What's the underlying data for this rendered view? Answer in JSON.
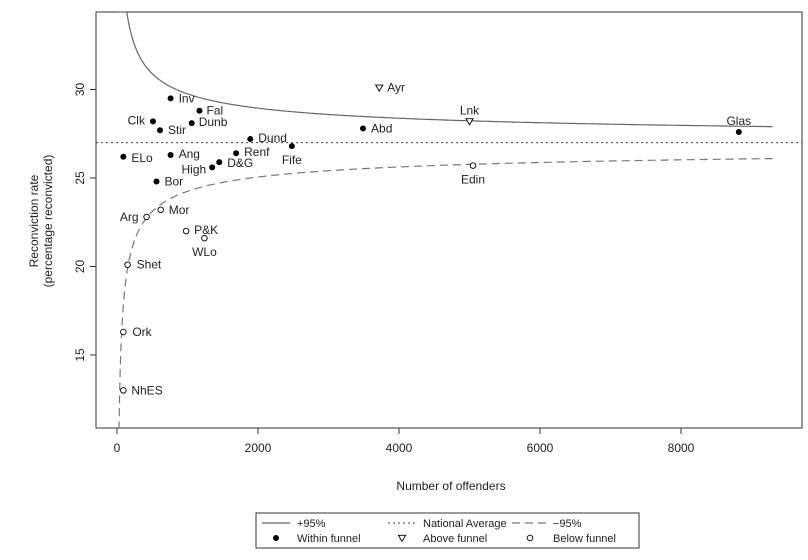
{
  "chart_data": {
    "type": "scatter",
    "title": "",
    "xlabel": "Number of offenders",
    "ylabel": [
      "Reconviction rate",
      "(percentage reconvicted)"
    ],
    "xlim": [
      -300,
      9400
    ],
    "ylim": [
      11.5,
      33.8
    ],
    "x_ticks": [
      0,
      2000,
      4000,
      6000,
      8000
    ],
    "y_ticks": [
      15,
      20,
      25,
      30
    ],
    "national_average": 27.0,
    "points": [
      {
        "label": "Inv",
        "x": 760,
        "y": 29.5,
        "group": "within"
      },
      {
        "label": "Fal",
        "x": 1170,
        "y": 28.8,
        "group": "within"
      },
      {
        "label": "Clk",
        "x": 510,
        "y": 28.2,
        "group": "within"
      },
      {
        "label": "Dunb",
        "x": 1060,
        "y": 28.1,
        "group": "within"
      },
      {
        "label": "Stir",
        "x": 610,
        "y": 27.7,
        "group": "within"
      },
      {
        "label": "Abd",
        "x": 3490,
        "y": 27.8,
        "group": "within"
      },
      {
        "label": "Dund",
        "x": 1890,
        "y": 27.2,
        "group": "within"
      },
      {
        "label": "Fife",
        "x": 2480,
        "y": 26.8,
        "group": "within"
      },
      {
        "label": "Renf",
        "x": 1690,
        "y": 26.4,
        "group": "within"
      },
      {
        "label": "Ang",
        "x": 760,
        "y": 26.3,
        "group": "within"
      },
      {
        "label": "ELo",
        "x": 90,
        "y": 26.2,
        "group": "within"
      },
      {
        "label": "D&G",
        "x": 1450,
        "y": 25.9,
        "group": "within"
      },
      {
        "label": "High",
        "x": 1350,
        "y": 25.6,
        "group": "within"
      },
      {
        "label": "Bor",
        "x": 560,
        "y": 24.8,
        "group": "within"
      },
      {
        "label": "Glas",
        "x": 8820,
        "y": 27.6,
        "group": "within"
      },
      {
        "label": "Ayr",
        "x": 3720,
        "y": 30.1,
        "group": "above"
      },
      {
        "label": "Lnk",
        "x": 5000,
        "y": 28.2,
        "group": "above"
      },
      {
        "label": "Edin",
        "x": 5050,
        "y": 25.7,
        "group": "below"
      },
      {
        "label": "Mor",
        "x": 620,
        "y": 23.2,
        "group": "below"
      },
      {
        "label": "Arg",
        "x": 420,
        "y": 22.8,
        "group": "below"
      },
      {
        "label": "P&K",
        "x": 980,
        "y": 22.0,
        "group": "below"
      },
      {
        "label": "WLo",
        "x": 1240,
        "y": 21.6,
        "group": "below"
      },
      {
        "label": "Shet",
        "x": 150,
        "y": 20.1,
        "group": "below"
      },
      {
        "label": "Ork",
        "x": 90,
        "y": 16.3,
        "group": "below"
      },
      {
        "label": "NhES",
        "x": 90,
        "y": 13.0,
        "group": "below"
      }
    ],
    "legend": {
      "placement": "bottom",
      "entries": [
        {
          "key": "upper",
          "label": "+95%"
        },
        {
          "key": "avg",
          "label": "National Average"
        },
        {
          "key": "lower",
          "label": "−95%"
        },
        {
          "key": "within",
          "label": "Within funnel"
        },
        {
          "key": "above",
          "label": "Above funnel"
        },
        {
          "key": "below",
          "label": "Below funnel"
        }
      ]
    },
    "colors": {
      "upper_line": "#666666",
      "lower_line": "#777777",
      "avg_line": "#444444",
      "points": "#000000"
    }
  }
}
